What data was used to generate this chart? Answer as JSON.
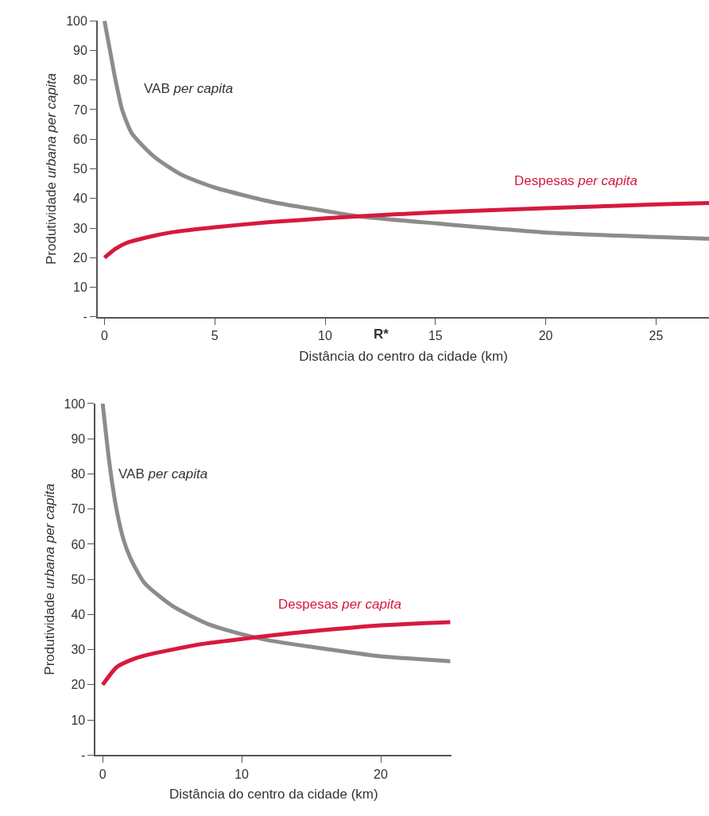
{
  "chart_data": [
    {
      "type": "line",
      "xlabel": "Distância do centro da cidade (km)",
      "ylabel": "Produtividade urbana per capita",
      "xlim": [
        -0.3,
        27.4
      ],
      "xticks": [
        0,
        5,
        10,
        15,
        20,
        25
      ],
      "ylim": [
        0,
        100
      ],
      "yticks": [
        {
          "value": 0,
          "label": "-"
        },
        10,
        20,
        30,
        40,
        50,
        60,
        70,
        80,
        90,
        100
      ],
      "series": [
        {
          "name": "VAB per capita",
          "color": "#8c8c8c",
          "x": [
            0,
            0.2,
            0.5,
            0.8,
            1.24,
            2.27,
            3.5,
            5,
            7.6,
            10,
            11.5,
            15,
            20,
            25,
            27.4
          ],
          "values": [
            100,
            92,
            80,
            70,
            62,
            54,
            48,
            43.7,
            38.8,
            35.8,
            34,
            31.6,
            28.5,
            27,
            26.4
          ]
        },
        {
          "name": "Despesas per capita",
          "color": "#d7193f",
          "x": [
            0,
            0.5,
            1,
            2,
            3,
            5,
            7.5,
            10,
            11.5,
            15,
            20,
            25,
            27.4
          ],
          "values": [
            20,
            23,
            25,
            27,
            28.5,
            30.3,
            32,
            33.3,
            34,
            35.3,
            36.7,
            38,
            38.5
          ]
        }
      ],
      "annotations": [
        "R*"
      ]
    },
    {
      "type": "line",
      "xlabel": "Distância do centro da cidade (km)",
      "ylabel": "Produtividade urbana per capita",
      "xlim": [
        -0.5,
        25.1
      ],
      "xticks": [
        0,
        10,
        20
      ],
      "ylim": [
        0,
        100
      ],
      "yticks": [
        {
          "value": 0,
          "label": "-"
        },
        10,
        20,
        30,
        40,
        50,
        60,
        70,
        80,
        90,
        100
      ],
      "series": [
        {
          "name": "VAB per capita",
          "color": "#8c8c8c",
          "x": [
            0,
            0.5,
            1,
            1.5,
            2,
            3,
            5,
            7.5,
            10,
            12,
            15,
            20,
            25
          ],
          "values": [
            100,
            82.6,
            69.8,
            61.3,
            56,
            49,
            42.5,
            37.4,
            34.4,
            32.6,
            30.8,
            28.1,
            26.7
          ]
        },
        {
          "name": "Despesas per capita",
          "color": "#d7193f",
          "x": [
            0,
            1,
            2,
            3,
            5,
            7.5,
            10,
            12,
            15,
            20,
            25
          ],
          "values": [
            20,
            25,
            27,
            28.3,
            30,
            31.8,
            33,
            34,
            35.2,
            36.9,
            37.8
          ]
        }
      ]
    }
  ]
}
